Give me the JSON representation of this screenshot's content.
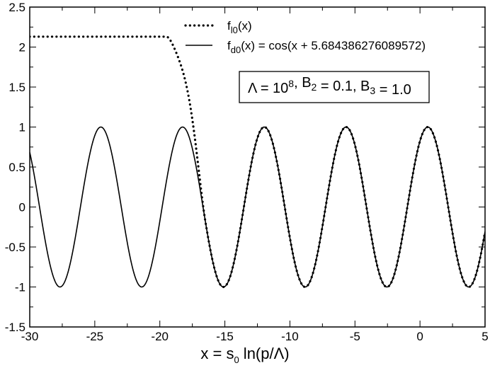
{
  "chart_data": {
    "type": "line",
    "xlabel": {
      "main": "x = s",
      "sub": "0",
      "rest": " ln(p/Λ)"
    },
    "ylabel": "",
    "xlim": [
      -30,
      5
    ],
    "ylim": [
      -1.5,
      2.5
    ],
    "xticks": [
      -30,
      -25,
      -20,
      -15,
      -10,
      -5,
      0,
      5
    ],
    "yticks": [
      -1.5,
      -1,
      -0.5,
      0,
      0.5,
      1,
      1.5,
      2,
      2.5
    ],
    "xtick_labels": [
      "-30",
      "-25",
      "-20",
      "-15",
      "-10",
      "-5",
      "0",
      "5"
    ],
    "ytick_labels": [
      "-1.5",
      "-1",
      "-0.5",
      "0",
      "0.5",
      "1",
      "1.5",
      "2",
      "2.5"
    ],
    "grid": false,
    "legend_position": "top-center",
    "series": [
      {
        "name": "f_l0(x)",
        "legend": {
          "main": "f",
          "sub": "l0",
          "rest": "(x)"
        },
        "style": "dotted",
        "plateau_value": 2.13,
        "plateau_until_x": -19.5,
        "matches_cosine_from_x": -16.5
      },
      {
        "name": "f_d0(x) = cos(x + 5.684386276089572)",
        "legend": {
          "main": "f",
          "sub": "d0",
          "rest": "(x) = cos(x + 5.684386276089572)"
        },
        "style": "solid",
        "phase": 5.684386276089572
      }
    ],
    "annotation": {
      "parts": [
        {
          "text": "Λ = 10",
          "kind": "normal"
        },
        {
          "text": "8",
          "kind": "sup"
        },
        {
          "text": ", B",
          "kind": "normal"
        },
        {
          "text": "2",
          "kind": "sub"
        },
        {
          "text": " = 0.1, B",
          "kind": "normal"
        },
        {
          "text": "3",
          "kind": "sub"
        },
        {
          "text": " = 1.0",
          "kind": "normal"
        }
      ]
    }
  },
  "colors": {
    "line": "#000000",
    "background": "#ffffff",
    "frame": "#000000"
  }
}
